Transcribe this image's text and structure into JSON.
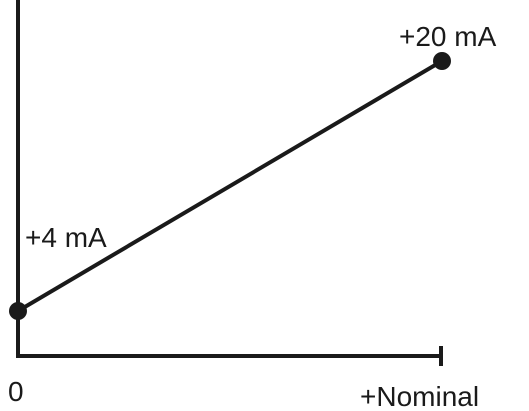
{
  "chart_data": {
    "type": "line",
    "x_labels": {
      "start": "0",
      "end": "+Nominal"
    },
    "points": [
      {
        "x": 0,
        "y": 4,
        "label": "+4 mA"
      },
      {
        "x": 1,
        "y": 20,
        "label": "+20 mA"
      }
    ],
    "grid": false
  }
}
